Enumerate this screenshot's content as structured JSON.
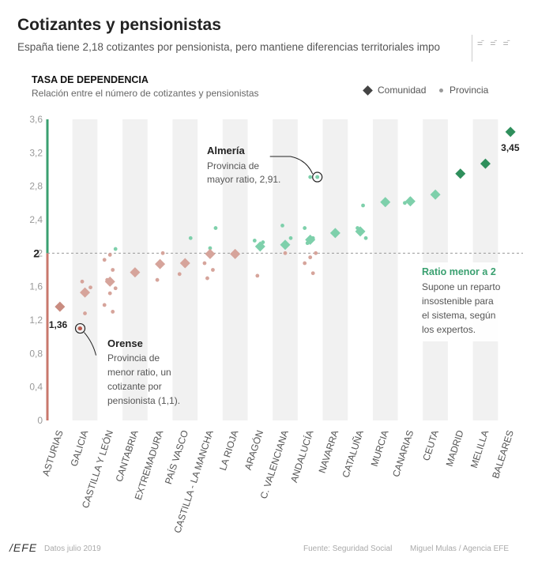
{
  "header": {
    "title": "Cotizantes y pensionistas",
    "subtitle": "España tiene 2,18 cotizantes por pensionista, pero mantiene diferencias territoriales impo",
    "icon": "ratio-icon"
  },
  "section": {
    "title": "TASA DE DEPENDENCIA",
    "subtitle": "Relación entre el número de cotizantes y pensionistas"
  },
  "legend": {
    "community": "Comunidad",
    "province": "Provincia"
  },
  "footer": {
    "logo": "/EFE",
    "date": "Datos julio 2019",
    "source": "Fuente: Seguridad Social",
    "credit": "Miguel Mulas / Agencia EFE"
  },
  "colors": {
    "red": "#d6a49b",
    "redDark": "#b85a4e",
    "green": "#7ed0ab",
    "greenDark": "#2f8f5c",
    "band": "#f1f1f1",
    "axisRed": "#c9786c",
    "axisGreen": "#3aa070"
  },
  "chart_data": {
    "type": "scatter",
    "title": "TASA DE DEPENDENCIA",
    "ylabel": "Relación entre el número de cotizantes y pensionistas",
    "ylim": [
      0,
      3.6
    ],
    "yticks": [
      "0",
      "0,4",
      "0,8",
      "1,2",
      "1,6",
      "2",
      "2,4",
      "2,8",
      "3,2",
      "3,6"
    ],
    "threshold": 2,
    "threshold_label": "2",
    "categories": [
      "ASTURIAS",
      "GALICIA",
      "CASTILLA Y LEÓN",
      "CANTABRIA",
      "EXTREMADURA",
      "PAÍS VASCO",
      "CASTILLA - LA MANCHA",
      "LA RIOJA",
      "ARAGÓN",
      "C. VALENCIANA",
      "ANDALUCÍA",
      "NAVARRA",
      "CATALUÑA",
      "MURCIA",
      "CANARIAS",
      "CEUTA",
      "MADRID",
      "MELILLA",
      "BALEARES"
    ],
    "series": [
      {
        "name": "Comunidad",
        "values": [
          1.36,
          1.53,
          1.66,
          1.77,
          1.87,
          1.88,
          1.99,
          1.99,
          2.08,
          2.1,
          2.16,
          2.24,
          2.26,
          2.61,
          2.62,
          2.7,
          2.95,
          3.07,
          3.45
        ]
      },
      {
        "name": "Provincia",
        "points": [
          [
            "GALICIA",
            1.1
          ],
          [
            "GALICIA",
            1.28
          ],
          [
            "GALICIA",
            1.59
          ],
          [
            "GALICIA",
            1.66
          ],
          [
            "CASTILLA Y LEÓN",
            1.3
          ],
          [
            "CASTILLA Y LEÓN",
            1.38
          ],
          [
            "CASTILLA Y LEÓN",
            1.52
          ],
          [
            "CASTILLA Y LEÓN",
            1.58
          ],
          [
            "CASTILLA Y LEÓN",
            1.68
          ],
          [
            "CASTILLA Y LEÓN",
            1.8
          ],
          [
            "CASTILLA Y LEÓN",
            1.92
          ],
          [
            "CASTILLA Y LEÓN",
            1.98
          ],
          [
            "CASTILLA Y LEÓN",
            2.05
          ],
          [
            "EXTREMADURA",
            1.68
          ],
          [
            "EXTREMADURA",
            2.0
          ],
          [
            "PAÍS VASCO",
            1.75
          ],
          [
            "PAÍS VASCO",
            1.85
          ],
          [
            "PAÍS VASCO",
            2.18
          ],
          [
            "CASTILLA - LA MANCHA",
            1.7
          ],
          [
            "CASTILLA - LA MANCHA",
            1.8
          ],
          [
            "CASTILLA - LA MANCHA",
            1.88
          ],
          [
            "CASTILLA - LA MANCHA",
            2.06
          ],
          [
            "CASTILLA - LA MANCHA",
            2.3
          ],
          [
            "ARAGÓN",
            1.73
          ],
          [
            "ARAGÓN",
            2.13
          ],
          [
            "ARAGÓN",
            2.15
          ],
          [
            "C. VALENCIANA",
            2.0
          ],
          [
            "C. VALENCIANA",
            2.18
          ],
          [
            "C. VALENCIANA",
            2.33
          ],
          [
            "ANDALUCÍA",
            1.76
          ],
          [
            "ANDALUCÍA",
            1.88
          ],
          [
            "ANDALUCÍA",
            1.95
          ],
          [
            "ANDALUCÍA",
            2.0
          ],
          [
            "ANDALUCÍA",
            2.12
          ],
          [
            "ANDALUCÍA",
            2.18
          ],
          [
            "ANDALUCÍA",
            2.3
          ],
          [
            "ANDALUCÍA",
            2.91
          ],
          [
            "CATALUÑA",
            2.18
          ],
          [
            "CATALUÑA",
            2.3
          ],
          [
            "CATALUÑA",
            2.57
          ],
          [
            "CANARIAS",
            2.6
          ],
          [
            "CANARIAS",
            2.65
          ]
        ]
      }
    ],
    "annotations": [
      {
        "label": "1,36",
        "target": "ASTURIAS"
      },
      {
        "label": "3,45",
        "target": "BALEARES"
      },
      {
        "title": "Almería",
        "text": [
          "Provincia de",
          "mayor ratio, 2,91."
        ],
        "target": "ANDALUCÍA",
        "value": 2.91
      },
      {
        "title": "Orense",
        "text": [
          "Provincia de",
          "menor ratio, un",
          "cotizante por",
          "pensionista (1,1)."
        ],
        "target": "GALICIA",
        "value": 1.1
      },
      {
        "title": "Ratio menor a 2",
        "text": [
          "Supone un reparto",
          "insostenible para",
          "el sistema, según",
          "los expertos."
        ]
      }
    ]
  }
}
